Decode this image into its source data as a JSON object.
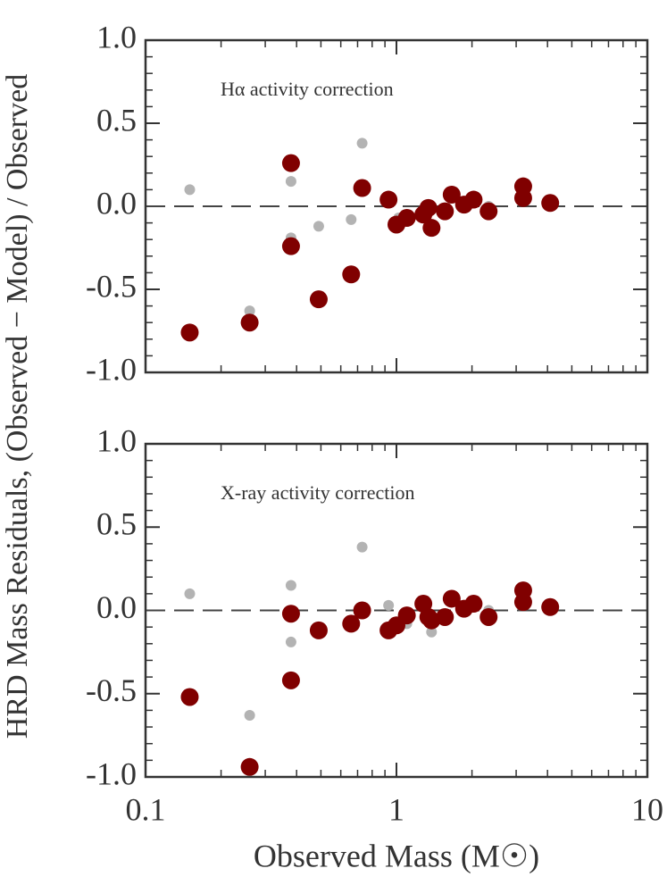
{
  "chart_data": [
    {
      "type": "scatter",
      "annotation": "Hα activity correction",
      "ylabel": "HRD Mass Residuals, (Observed − Model) / Observed",
      "xlim": [
        0.1,
        10
      ],
      "xticks": [
        0.1,
        1,
        10
      ],
      "xscale": "log",
      "ylim": [
        -1,
        1
      ],
      "yticks": [
        {
          "value": -1,
          "label": "-1.0"
        },
        {
          "value": -0.5,
          "label": "-0.5"
        },
        {
          "value": 0,
          "label": "0.0"
        },
        {
          "value": 0.5,
          "label": "0.5"
        },
        {
          "value": 1,
          "label": "1.0"
        }
      ],
      "reference_line": 0,
      "series": [
        {
          "color": "#b3b3b3",
          "x": [
            0.15,
            0.26,
            0.38,
            0.38,
            0.49,
            0.66,
            0.73,
            0.93,
            1.02,
            1.1,
            1.38,
            2.33
          ],
          "values": [
            0.1,
            -0.63,
            0.15,
            -0.19,
            -0.12,
            -0.08,
            0.38,
            0.04,
            -0.07,
            -0.08,
            -0.13,
            0.0
          ]
        },
        {
          "color": "#800000",
          "x": [
            0.15,
            0.26,
            0.38,
            0.38,
            0.49,
            0.66,
            0.73,
            0.93,
            1.0,
            1.1,
            1.28,
            1.34,
            1.38,
            1.56,
            1.66,
            1.86,
            2.03,
            2.33,
            3.2,
            3.2,
            4.1
          ],
          "values": [
            -0.76,
            -0.7,
            0.26,
            -0.24,
            -0.56,
            -0.41,
            0.11,
            0.04,
            -0.11,
            -0.07,
            -0.05,
            -0.01,
            -0.13,
            -0.03,
            0.07,
            0.01,
            0.04,
            -0.03,
            0.12,
            0.05,
            0.02
          ]
        }
      ]
    },
    {
      "type": "scatter",
      "annotation": "X-ray activity correction",
      "xlabel": "Observed Mass (M☉)",
      "xlim": [
        0.1,
        10
      ],
      "xticks": [
        0.1,
        1,
        10
      ],
      "xscale": "log",
      "ylim": [
        -1,
        1
      ],
      "yticks": [
        {
          "value": -1,
          "label": "-1.0"
        },
        {
          "value": -0.5,
          "label": "-0.5"
        },
        {
          "value": 0,
          "label": "0.0"
        },
        {
          "value": 0.5,
          "label": "0.5"
        },
        {
          "value": 1,
          "label": "1.0"
        }
      ],
      "reference_line": 0,
      "series": [
        {
          "color": "#b3b3b3",
          "x": [
            0.15,
            0.26,
            0.38,
            0.38,
            0.73,
            0.93,
            1.1,
            1.38,
            2.33
          ],
          "values": [
            0.1,
            -0.63,
            0.15,
            -0.19,
            0.38,
            0.03,
            -0.08,
            -0.13,
            0.0
          ]
        },
        {
          "color": "#800000",
          "x": [
            0.15,
            0.26,
            0.38,
            0.38,
            0.49,
            0.66,
            0.73,
            0.93,
            1.0,
            1.1,
            1.28,
            1.34,
            1.38,
            1.56,
            1.66,
            1.86,
            2.03,
            2.33,
            3.2,
            3.2,
            4.1
          ],
          "values": [
            -0.52,
            -0.94,
            -0.02,
            -0.42,
            -0.12,
            -0.08,
            0.0,
            -0.12,
            -0.09,
            -0.03,
            0.04,
            -0.04,
            -0.06,
            -0.04,
            0.07,
            0.01,
            0.04,
            -0.04,
            0.12,
            0.05,
            0.02
          ]
        }
      ]
    }
  ]
}
